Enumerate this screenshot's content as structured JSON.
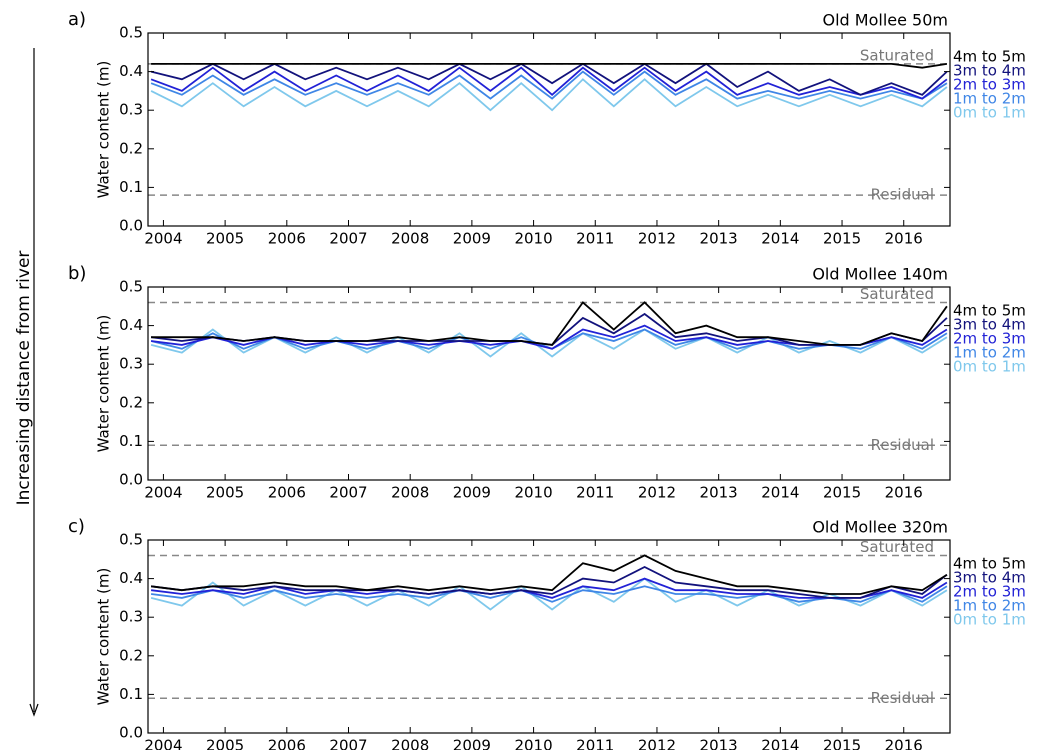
{
  "side_label": "Increasing distance from river",
  "chart_data": [
    {
      "type": "line",
      "panel_label": "a)",
      "title": "Old Mollee 50m",
      "y_label": "Water content (m)",
      "x": [
        2003.8,
        2004.3,
        2004.8,
        2005.3,
        2005.8,
        2006.3,
        2006.8,
        2007.3,
        2007.8,
        2008.3,
        2008.8,
        2009.3,
        2009.8,
        2010.3,
        2010.8,
        2011.3,
        2011.8,
        2012.3,
        2012.8,
        2013.3,
        2013.8,
        2014.3,
        2014.8,
        2015.3,
        2015.8,
        2016.3,
        2016.7
      ],
      "xlim": [
        2003.75,
        2016.75
      ],
      "xticks": [
        2004,
        2005,
        2006,
        2007,
        2008,
        2009,
        2010,
        2011,
        2012,
        2013,
        2014,
        2015,
        2016
      ],
      "ylim": [
        0,
        0.5
      ],
      "yticks": [
        {
          "value": 0,
          "label": "0.0"
        },
        0.1,
        0.2,
        0.3,
        0.4,
        0.5
      ],
      "hlines": [
        {
          "value": 0.42,
          "label": "Saturated"
        },
        {
          "value": 0.08,
          "label": "Residual"
        }
      ],
      "series": [
        {
          "name": "0m to 1m",
          "color": "#7fc8ec",
          "values": [
            0.35,
            0.31,
            0.37,
            0.31,
            0.36,
            0.31,
            0.35,
            0.31,
            0.35,
            0.31,
            0.37,
            0.3,
            0.37,
            0.3,
            0.38,
            0.31,
            0.38,
            0.31,
            0.36,
            0.31,
            0.34,
            0.31,
            0.34,
            0.31,
            0.34,
            0.31,
            0.36
          ]
        },
        {
          "name": "1m to 2m",
          "color": "#3f86e6",
          "values": [
            0.37,
            0.34,
            0.39,
            0.34,
            0.38,
            0.34,
            0.37,
            0.34,
            0.37,
            0.34,
            0.39,
            0.33,
            0.39,
            0.33,
            0.4,
            0.34,
            0.4,
            0.34,
            0.38,
            0.33,
            0.35,
            0.33,
            0.35,
            0.33,
            0.35,
            0.33,
            0.37
          ]
        },
        {
          "name": "2m to 3m",
          "color": "#2222d6",
          "values": [
            0.38,
            0.35,
            0.41,
            0.35,
            0.4,
            0.35,
            0.39,
            0.35,
            0.39,
            0.35,
            0.41,
            0.35,
            0.41,
            0.34,
            0.41,
            0.35,
            0.41,
            0.35,
            0.4,
            0.34,
            0.37,
            0.34,
            0.36,
            0.34,
            0.36,
            0.33,
            0.38
          ]
        },
        {
          "name": "3m to 4m",
          "color": "#12127c",
          "values": [
            0.4,
            0.38,
            0.42,
            0.38,
            0.42,
            0.38,
            0.41,
            0.38,
            0.41,
            0.38,
            0.42,
            0.38,
            0.42,
            0.37,
            0.42,
            0.37,
            0.42,
            0.37,
            0.42,
            0.36,
            0.4,
            0.35,
            0.38,
            0.34,
            0.37,
            0.34,
            0.4
          ]
        },
        {
          "name": "4m to 5m",
          "color": "#000000",
          "values": [
            0.42,
            0.42,
            0.42,
            0.42,
            0.42,
            0.42,
            0.42,
            0.42,
            0.42,
            0.42,
            0.42,
            0.42,
            0.42,
            0.42,
            0.42,
            0.42,
            0.42,
            0.42,
            0.42,
            0.42,
            0.42,
            0.42,
            0.42,
            0.42,
            0.42,
            0.41,
            0.42
          ]
        }
      ]
    },
    {
      "type": "line",
      "panel_label": "b)",
      "title": "Old Mollee 140m",
      "y_label": "Water content (m)",
      "x": [
        2003.8,
        2004.3,
        2004.8,
        2005.3,
        2005.8,
        2006.3,
        2006.8,
        2007.3,
        2007.8,
        2008.3,
        2008.8,
        2009.3,
        2009.8,
        2010.3,
        2010.8,
        2011.3,
        2011.8,
        2012.3,
        2012.8,
        2013.3,
        2013.8,
        2014.3,
        2014.8,
        2015.3,
        2015.8,
        2016.3,
        2016.7
      ],
      "xlim": [
        2003.75,
        2016.75
      ],
      "xticks": [
        2004,
        2005,
        2006,
        2007,
        2008,
        2009,
        2010,
        2011,
        2012,
        2013,
        2014,
        2015,
        2016
      ],
      "ylim": [
        0,
        0.5
      ],
      "yticks": [
        {
          "value": 0,
          "label": "0.0"
        },
        0.1,
        0.2,
        0.3,
        0.4,
        0.5
      ],
      "hlines": [
        {
          "value": 0.46,
          "label": "Saturated"
        },
        {
          "value": 0.09,
          "label": "Residual"
        }
      ],
      "series": [
        {
          "name": "0m to 1m",
          "color": "#7fc8ec",
          "values": [
            0.35,
            0.33,
            0.39,
            0.33,
            0.37,
            0.33,
            0.37,
            0.33,
            0.37,
            0.33,
            0.38,
            0.32,
            0.38,
            0.32,
            0.38,
            0.34,
            0.39,
            0.34,
            0.37,
            0.33,
            0.37,
            0.33,
            0.36,
            0.33,
            0.37,
            0.33,
            0.37
          ]
        },
        {
          "name": "1m to 2m",
          "color": "#3f86e6",
          "values": [
            0.36,
            0.34,
            0.38,
            0.34,
            0.37,
            0.34,
            0.36,
            0.34,
            0.36,
            0.34,
            0.37,
            0.34,
            0.37,
            0.34,
            0.38,
            0.36,
            0.39,
            0.35,
            0.37,
            0.34,
            0.36,
            0.34,
            0.35,
            0.34,
            0.37,
            0.34,
            0.38
          ]
        },
        {
          "name": "2m to 3m",
          "color": "#2222d6",
          "values": [
            0.36,
            0.35,
            0.37,
            0.35,
            0.37,
            0.35,
            0.36,
            0.35,
            0.36,
            0.35,
            0.36,
            0.35,
            0.36,
            0.34,
            0.39,
            0.37,
            0.4,
            0.36,
            0.37,
            0.35,
            0.36,
            0.35,
            0.35,
            0.35,
            0.37,
            0.35,
            0.39
          ]
        },
        {
          "name": "3m to 4m",
          "color": "#12127c",
          "values": [
            0.37,
            0.36,
            0.37,
            0.36,
            0.37,
            0.36,
            0.36,
            0.36,
            0.36,
            0.36,
            0.36,
            0.36,
            0.36,
            0.35,
            0.42,
            0.38,
            0.43,
            0.37,
            0.38,
            0.36,
            0.37,
            0.35,
            0.35,
            0.35,
            0.38,
            0.36,
            0.42
          ]
        },
        {
          "name": "4m to 5m",
          "color": "#000000",
          "values": [
            0.37,
            0.37,
            0.37,
            0.36,
            0.37,
            0.36,
            0.36,
            0.36,
            0.37,
            0.36,
            0.37,
            0.36,
            0.36,
            0.35,
            0.46,
            0.39,
            0.46,
            0.38,
            0.4,
            0.37,
            0.37,
            0.36,
            0.35,
            0.35,
            0.38,
            0.36,
            0.45
          ]
        }
      ]
    },
    {
      "type": "line",
      "panel_label": "c)",
      "title": "Old Mollee 320m",
      "y_label": "Water content (m)",
      "x": [
        2003.8,
        2004.3,
        2004.8,
        2005.3,
        2005.8,
        2006.3,
        2006.8,
        2007.3,
        2007.8,
        2008.3,
        2008.8,
        2009.3,
        2009.8,
        2010.3,
        2010.8,
        2011.3,
        2011.8,
        2012.3,
        2012.8,
        2013.3,
        2013.8,
        2014.3,
        2014.8,
        2015.3,
        2015.8,
        2016.3,
        2016.7
      ],
      "xlim": [
        2003.75,
        2016.75
      ],
      "xticks": [
        2004,
        2005,
        2006,
        2007,
        2008,
        2009,
        2010,
        2011,
        2012,
        2013,
        2014,
        2015,
        2016
      ],
      "ylim": [
        0,
        0.5
      ],
      "yticks": [
        {
          "value": 0,
          "label": "0.0"
        },
        0.1,
        0.2,
        0.3,
        0.4,
        0.5
      ],
      "hlines": [
        {
          "value": 0.46,
          "label": "Saturated"
        },
        {
          "value": 0.09,
          "label": "Residual"
        }
      ],
      "series": [
        {
          "name": "0m to 1m",
          "color": "#7fc8ec",
          "values": [
            0.35,
            0.33,
            0.39,
            0.33,
            0.37,
            0.33,
            0.37,
            0.33,
            0.37,
            0.33,
            0.38,
            0.32,
            0.38,
            0.32,
            0.38,
            0.34,
            0.4,
            0.34,
            0.37,
            0.33,
            0.37,
            0.33,
            0.36,
            0.33,
            0.37,
            0.33,
            0.37
          ]
        },
        {
          "name": "1m to 2m",
          "color": "#3f86e6",
          "values": [
            0.36,
            0.35,
            0.37,
            0.35,
            0.37,
            0.35,
            0.36,
            0.35,
            0.36,
            0.35,
            0.37,
            0.35,
            0.37,
            0.34,
            0.37,
            0.36,
            0.38,
            0.36,
            0.36,
            0.35,
            0.36,
            0.34,
            0.35,
            0.34,
            0.37,
            0.34,
            0.38
          ]
        },
        {
          "name": "2m to 3m",
          "color": "#2222d6",
          "values": [
            0.37,
            0.36,
            0.37,
            0.36,
            0.38,
            0.36,
            0.37,
            0.36,
            0.37,
            0.36,
            0.37,
            0.36,
            0.37,
            0.35,
            0.38,
            0.37,
            0.4,
            0.37,
            0.37,
            0.36,
            0.36,
            0.35,
            0.35,
            0.35,
            0.37,
            0.35,
            0.39
          ]
        },
        {
          "name": "3m to 4m",
          "color": "#12127c",
          "values": [
            0.38,
            0.37,
            0.38,
            0.37,
            0.38,
            0.37,
            0.37,
            0.37,
            0.37,
            0.36,
            0.37,
            0.36,
            0.37,
            0.36,
            0.4,
            0.39,
            0.43,
            0.39,
            0.38,
            0.37,
            0.37,
            0.36,
            0.35,
            0.35,
            0.38,
            0.36,
            0.41
          ]
        },
        {
          "name": "4m to 5m",
          "color": "#000000",
          "values": [
            0.38,
            0.37,
            0.38,
            0.38,
            0.39,
            0.38,
            0.38,
            0.37,
            0.38,
            0.37,
            0.38,
            0.37,
            0.38,
            0.37,
            0.44,
            0.42,
            0.46,
            0.42,
            0.4,
            0.38,
            0.38,
            0.37,
            0.36,
            0.36,
            0.38,
            0.37,
            0.41
          ]
        }
      ]
    }
  ]
}
